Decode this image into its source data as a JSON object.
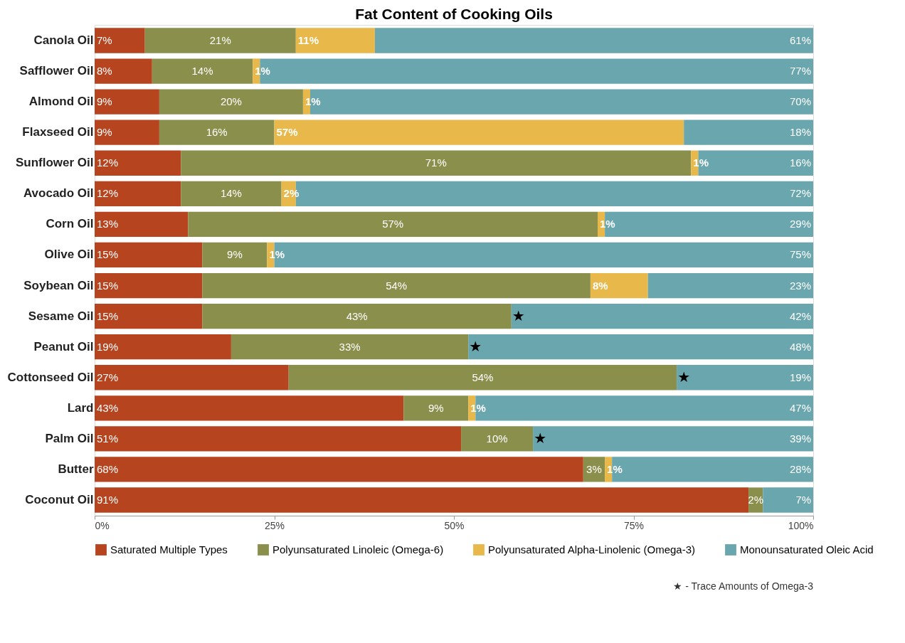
{
  "chart_data": {
    "type": "bar",
    "orientation": "horizontal",
    "stacked": true,
    "title": "Fat Content of Cooking Oils",
    "categories": [
      "Canola Oil",
      "Safflower Oil",
      "Almond Oil",
      "Flaxseed Oil",
      "Sunflower Oil",
      "Avocado Oil",
      "Corn Oil",
      "Olive Oil",
      "Soybean Oil",
      "Sesame Oil",
      "Peanut Oil",
      "Cottonseed Oil",
      "Lard",
      "Palm Oil",
      "Butter",
      "Coconut Oil"
    ],
    "series": [
      {
        "name": "Saturated Multiple Types",
        "color": "#b5441f",
        "values": [
          7,
          8,
          9,
          9,
          12,
          12,
          13,
          15,
          15,
          15,
          19,
          27,
          43,
          51,
          68,
          91
        ],
        "value_labels": [
          "7%",
          "8%",
          "9%",
          "9%",
          "12%",
          "12%",
          "13%",
          "15%",
          "15%",
          "15%",
          "19%",
          "27%",
          "43%",
          "51%",
          "68%",
          "91%"
        ]
      },
      {
        "name": "Polyunsaturated Linoleic (Omega-6)",
        "color": "#8a8f4c",
        "values": [
          21,
          14,
          20,
          16,
          71,
          14,
          57,
          9,
          54,
          43,
          33,
          54,
          9,
          10,
          3,
          2
        ],
        "value_labels": [
          "21%",
          "14%",
          "20%",
          "16%",
          "71%",
          "14%",
          "57%",
          "9%",
          "54%",
          "43%",
          "33%",
          "54%",
          "9%",
          "10%",
          "3%",
          "2%"
        ]
      },
      {
        "name": "Polyunsaturated Alpha-Linolenic (Omega-3)",
        "color": "#e8b84a",
        "values": [
          11,
          1,
          1,
          57,
          1,
          2,
          1,
          1,
          8,
          null,
          null,
          null,
          1,
          null,
          1,
          null
        ],
        "value_labels": [
          "11%",
          "1%",
          "1%",
          "57%",
          "1%",
          "2%",
          "1%",
          "1%",
          "8%",
          null,
          null,
          null,
          "1%",
          null,
          "1%",
          null
        ]
      },
      {
        "name": "Monounsaturated Oleic Acid",
        "color": "#6aa6ad",
        "values": [
          61,
          77,
          70,
          18,
          16,
          72,
          29,
          75,
          23,
          42,
          48,
          19,
          47,
          39,
          28,
          7
        ],
        "value_labels": [
          "61%",
          "77%",
          "70%",
          "18%",
          "16%",
          "72%",
          "29%",
          "75%",
          "23%",
          "42%",
          "48%",
          "19%",
          "47%",
          "39%",
          "28%",
          "7%"
        ]
      }
    ],
    "xlim": [
      0,
      100
    ],
    "xticks": [
      {
        "value": 0,
        "label": "0%"
      },
      {
        "value": 25,
        "label": "25%"
      },
      {
        "value": 50,
        "label": "50%"
      },
      {
        "value": 75,
        "label": "75%"
      },
      {
        "value": 100,
        "label": "100%"
      }
    ],
    "annotations": [
      {
        "text": "★",
        "x": 58,
        "y": "Sesame Oil"
      },
      {
        "text": "★",
        "x": 52,
        "y": "Peanut Oil"
      },
      {
        "text": "★",
        "x": 81,
        "y": "Cottonseed Oil"
      },
      {
        "text": "★",
        "x": 61,
        "y": "Palm Oil"
      },
      "★ - Trace Amounts of Omega-3"
    ],
    "legend": "bottom",
    "grid": false
  }
}
